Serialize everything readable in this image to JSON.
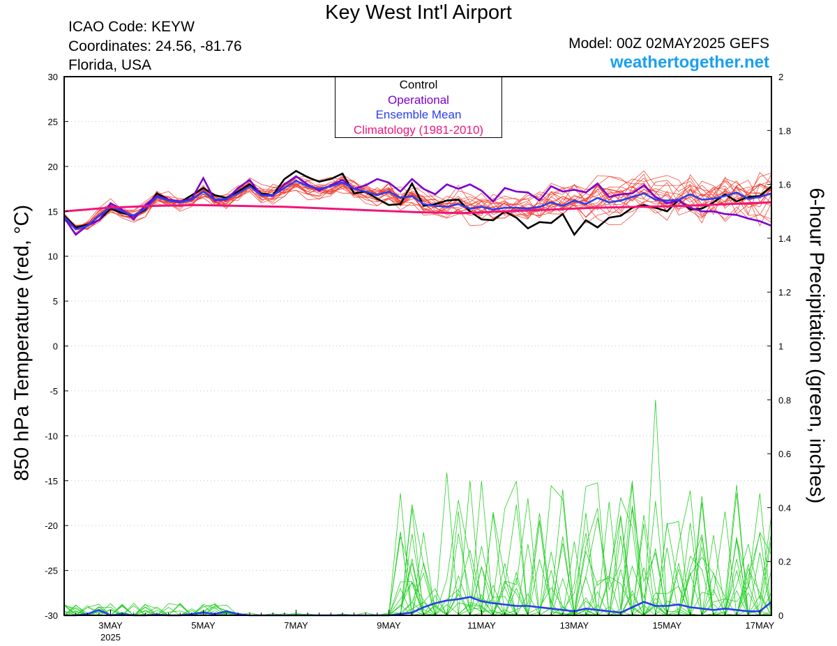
{
  "header": {
    "title": "Key West Int'l Airport",
    "icao": "ICAO Code: KEYW",
    "coordinates": "Coordinates: 24.56, -81.76",
    "region": "Florida, USA",
    "model": "Model: 00Z 02MAY2025 GEFS",
    "site": "weathertogether.net"
  },
  "legend": {
    "control": "Control",
    "operational": "Operational",
    "ensemble_mean": "Ensemble Mean",
    "climatology": "Climatology (1981-2010)"
  },
  "colors": {
    "control": "#000000",
    "operational": "#7b00cf",
    "ensemble_mean": "#2a3df0",
    "climatology": "#f0157a",
    "members_temp": "#f03a2a",
    "members_precip": "#25cf25",
    "site": "#1aa0f0"
  },
  "chart_data": {
    "type": "line",
    "title": "Key West Int'l Airport",
    "ylabel": "850 hPa Temperature (red, °C)",
    "y2label": "6-hour Precipitation (green, inches)",
    "ylim": [
      -30,
      30
    ],
    "y2lim": [
      0,
      2
    ],
    "yticks": [
      30,
      25,
      20,
      15,
      10,
      5,
      0,
      -5,
      -10,
      -15,
      -20,
      -25,
      -30
    ],
    "y2ticks": [
      2,
      1.8,
      1.6,
      1.4,
      1.2,
      1,
      0.8,
      0.6,
      0.4,
      0.2,
      0
    ],
    "x_step_hours": 6,
    "x_start": "2025-05-02 00Z",
    "xticks": [
      {
        "label": "3MAY",
        "sub": "2025",
        "index": 4
      },
      {
        "label": "5MAY",
        "sub": "",
        "index": 12
      },
      {
        "label": "7MAY",
        "sub": "",
        "index": 20
      },
      {
        "label": "9MAY",
        "sub": "",
        "index": 28
      },
      {
        "label": "11MAY",
        "sub": "",
        "index": 36
      },
      {
        "label": "13MAY",
        "sub": "",
        "index": 44
      },
      {
        "label": "15MAY",
        "sub": "",
        "index": 52
      },
      {
        "label": "17MAY",
        "sub": "",
        "index": 60
      }
    ],
    "grid": true,
    "series": [
      {
        "name": "Control",
        "axis": "left",
        "kind": "control",
        "values": [
          14.5,
          13.2,
          13.5,
          14.0,
          15.3,
          14.8,
          14.5,
          15.2,
          17.0,
          16.3,
          16.0,
          16.8,
          17.6,
          16.8,
          16.5,
          17.2,
          18.0,
          17.0,
          16.8,
          18.6,
          19.5,
          18.8,
          18.3,
          18.6,
          19.2,
          17.0,
          17.2,
          16.4,
          15.7,
          15.8,
          18.1,
          15.6,
          15.8,
          16.2,
          16.3,
          15.0,
          14.1,
          14.0,
          15.0,
          14.3,
          13.1,
          13.8,
          13.7,
          14.7,
          12.4,
          14.0,
          13.2,
          14.3,
          14.5,
          15.4,
          15.7,
          15.4,
          15.0,
          16.3,
          15.2,
          15.3,
          16.0,
          16.9,
          16.1,
          16.6,
          16.7,
          17.8
        ]
      },
      {
        "name": "Operational",
        "axis": "left",
        "kind": "operational",
        "values": [
          14.3,
          12.4,
          13.4,
          14.0,
          15.9,
          15.2,
          14.1,
          15.7,
          16.7,
          16.3,
          16.1,
          16.4,
          18.7,
          16.2,
          16.3,
          17.6,
          18.5,
          16.8,
          16.7,
          18.0,
          18.9,
          18.0,
          17.3,
          17.9,
          18.5,
          17.5,
          17.9,
          18.6,
          18.2,
          17.2,
          18.6,
          17.5,
          16.9,
          18.0,
          17.5,
          18.0,
          17.3,
          16.1,
          17.6,
          17.2,
          17.1,
          16.2,
          17.8,
          17.2,
          17.4,
          17.1,
          18.1,
          16.6,
          16.9,
          17.0,
          17.9,
          16.6,
          15.9,
          16.2,
          15.4,
          15.0,
          15.0,
          14.7,
          14.6,
          14.2,
          13.9,
          13.4
        ]
      },
      {
        "name": "Ensemble Mean",
        "axis": "left",
        "kind": "mean",
        "values": [
          14.4,
          13.0,
          13.4,
          14.5,
          15.5,
          15.0,
          14.5,
          15.3,
          16.6,
          16.2,
          16.0,
          16.3,
          17.2,
          16.3,
          16.4,
          17.0,
          17.8,
          16.8,
          16.8,
          17.6,
          18.4,
          17.8,
          17.5,
          17.8,
          18.2,
          17.5,
          17.2,
          16.8,
          17.2,
          16.5,
          16.7,
          15.8,
          15.6,
          15.5,
          15.8,
          15.3,
          15.5,
          15.2,
          15.4,
          15.4,
          15.3,
          15.5,
          16.0,
          15.6,
          16.2,
          15.8,
          16.5,
          16.0,
          16.2,
          16.6,
          17.0,
          16.3,
          16.2,
          16.3,
          16.9,
          16.3,
          16.4,
          16.7,
          17.1,
          16.4,
          16.6,
          17.0
        ]
      },
      {
        "name": "Climatology (1981-2010)",
        "axis": "left",
        "kind": "clim",
        "values": [
          15.0,
          15.4,
          15.6,
          15.7,
          15.6,
          15.5,
          15.3,
          15.1,
          14.9,
          14.8,
          15.0,
          15.2,
          15.4,
          15.5,
          15.6,
          15.8,
          16.0
        ]
      },
      {
        "name": "",
        "axis": "right",
        "kind": "mean_precip",
        "values": [
          0,
          0,
          0.005,
          0.02,
          0,
          0.005,
          0,
          0,
          0.003,
          0,
          0,
          0.005,
          0.01,
          0.005,
          0.015,
          0.005,
          0,
          0,
          0,
          0,
          0,
          0,
          0,
          0,
          0,
          0,
          0,
          0,
          0,
          0.005,
          0.01,
          0.03,
          0.045,
          0.055,
          0.06,
          0.068,
          0.052,
          0.045,
          0.04,
          0.035,
          0.035,
          0.03,
          0.025,
          0.02,
          0.015,
          0.025,
          0.02,
          0.015,
          0.01,
          0.03,
          0.05,
          0.035,
          0.035,
          0.04,
          0.03,
          0.025,
          0.02,
          0.025,
          0.02,
          0.015,
          0.015,
          0.05
        ]
      }
    ]
  }
}
